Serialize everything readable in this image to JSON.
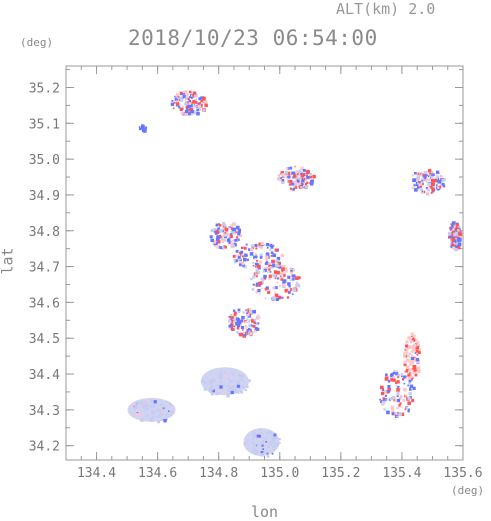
{
  "header": {
    "alt_label": "ALT(km) 2.0",
    "timestamp": "2018/10/23 06:54:00"
  },
  "axes": {
    "unit_top_left": "(deg)",
    "unit_bottom_right": "(deg)",
    "x_label": "lon",
    "y_label": "lat",
    "x_ticks": [
      "134.4",
      "134.6",
      "134.8",
      "135.0",
      "135.2",
      "135.4",
      "135.6"
    ],
    "y_ticks": [
      "34.2",
      "34.3",
      "34.4",
      "34.5",
      "34.6",
      "34.7",
      "34.8",
      "34.9",
      "35.0",
      "35.1",
      "35.2"
    ],
    "x_range": [
      134.3,
      135.6
    ],
    "y_range": [
      34.16,
      35.26
    ]
  },
  "colors": {
    "frame": "#999999",
    "positive": "#ff5555",
    "negative": "#6677ff",
    "weak_negative": "#c8ccf0",
    "weak_positive": "#ffc8c8"
  },
  "chart_data": {
    "type": "scatter",
    "title": "2018/10/23 06:54:00",
    "xlabel": "lon",
    "ylabel": "lat",
    "xlim": [
      134.3,
      135.6
    ],
    "ylim": [
      34.16,
      35.26
    ],
    "regions": [
      {
        "kind": "negative",
        "lon": 134.55,
        "lat": 35.09
      },
      {
        "kind": "mixed",
        "lon": 134.7,
        "lat": 35.16
      },
      {
        "kind": "mixed",
        "lon": 135.05,
        "lat": 34.95
      },
      {
        "kind": "mixed",
        "lon": 135.48,
        "lat": 34.94
      },
      {
        "kind": "mixed",
        "lon": 134.82,
        "lat": 34.79
      },
      {
        "kind": "mixed",
        "lon": 134.93,
        "lat": 34.73
      },
      {
        "kind": "mixed",
        "lon": 134.98,
        "lat": 34.66
      },
      {
        "kind": "mixed",
        "lon": 134.88,
        "lat": 34.55
      },
      {
        "kind": "mixed",
        "lon": 135.57,
        "lat": 34.79
      },
      {
        "kind": "weak_negative",
        "lon": 134.82,
        "lat": 34.38
      },
      {
        "kind": "weak_negative",
        "lon": 134.58,
        "lat": 34.3
      },
      {
        "kind": "weak_negative",
        "lon": 134.94,
        "lat": 34.21
      },
      {
        "kind": "mixed",
        "lon": 135.38,
        "lat": 34.35
      },
      {
        "kind": "weak_positive",
        "lon": 135.43,
        "lat": 34.45
      }
    ]
  }
}
